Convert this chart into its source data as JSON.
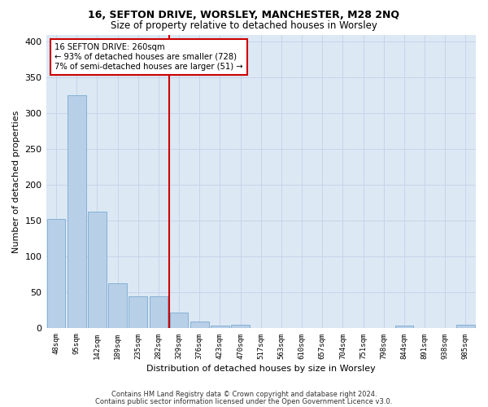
{
  "title1": "16, SEFTON DRIVE, WORSLEY, MANCHESTER, M28 2NQ",
  "title2": "Size of property relative to detached houses in Worsley",
  "xlabel": "Distribution of detached houses by size in Worsley",
  "ylabel": "Number of detached properties",
  "footnote1": "Contains HM Land Registry data © Crown copyright and database right 2024.",
  "footnote2": "Contains public sector information licensed under the Open Government Licence v3.0.",
  "annotation_line1": "16 SEFTON DRIVE: 260sqm",
  "annotation_line2": "← 93% of detached houses are smaller (728)",
  "annotation_line3": "7% of semi-detached houses are larger (51) →",
  "bar_categories": [
    "48sqm",
    "95sqm",
    "142sqm",
    "189sqm",
    "235sqm",
    "282sqm",
    "329sqm",
    "376sqm",
    "423sqm",
    "470sqm",
    "517sqm",
    "563sqm",
    "610sqm",
    "657sqm",
    "704sqm",
    "751sqm",
    "798sqm",
    "844sqm",
    "891sqm",
    "938sqm",
    "985sqm"
  ],
  "bar_values": [
    153,
    325,
    163,
    63,
    45,
    45,
    22,
    10,
    4,
    5,
    0,
    0,
    0,
    0,
    0,
    0,
    0,
    4,
    0,
    0,
    5
  ],
  "bar_color": "#b8cfe8",
  "bar_edge_color": "#7aaad0",
  "vline_position": 5.5,
  "vline_color": "#cc0000",
  "annotation_box_edge_color": "#cc0000",
  "grid_color": "#c8d4e8",
  "background_color": "#dce8f4",
  "ylim": [
    0,
    410
  ],
  "yticks": [
    0,
    50,
    100,
    150,
    200,
    250,
    300,
    350,
    400
  ]
}
